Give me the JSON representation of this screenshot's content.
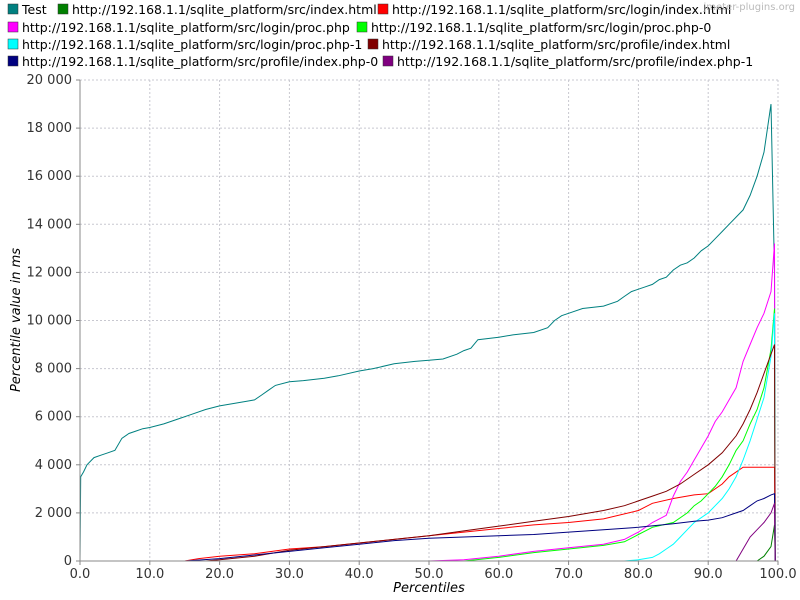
{
  "watermark": "jmeter-plugins.org",
  "chart_data": {
    "type": "line",
    "title": "",
    "xlabel": "Percentiles",
    "ylabel": "Percentile value in ms",
    "xlim": [
      0,
      100
    ],
    "ylim": [
      0,
      20000
    ],
    "x_ticks": [
      "0.0",
      "10.0",
      "20.0",
      "30.0",
      "40.0",
      "50.0",
      "60.0",
      "70.0",
      "80.0",
      "90.0",
      "100.0"
    ],
    "y_ticks": [
      "0",
      "2 000",
      "4 000",
      "6 000",
      "8 000",
      "10 000",
      "12 000",
      "14 000",
      "16 000",
      "18 000",
      "20 000"
    ],
    "grid": true,
    "legend_position": "top",
    "series": [
      {
        "name": "Test",
        "color": "#008080",
        "points": [
          [
            0,
            0
          ],
          [
            0.1,
            3500
          ],
          [
            0.5,
            3700
          ],
          [
            1,
            4000
          ],
          [
            2,
            4300
          ],
          [
            3,
            4400
          ],
          [
            4,
            4500
          ],
          [
            5,
            4600
          ],
          [
            6,
            5100
          ],
          [
            7,
            5300
          ],
          [
            8,
            5400
          ],
          [
            9,
            5500
          ],
          [
            10,
            5550
          ],
          [
            12,
            5700
          ],
          [
            14,
            5900
          ],
          [
            16,
            6100
          ],
          [
            18,
            6300
          ],
          [
            20,
            6450
          ],
          [
            22,
            6550
          ],
          [
            24,
            6650
          ],
          [
            25,
            6700
          ],
          [
            26,
            6900
          ],
          [
            27,
            7100
          ],
          [
            28,
            7300
          ],
          [
            30,
            7450
          ],
          [
            32,
            7500
          ],
          [
            35,
            7600
          ],
          [
            37,
            7700
          ],
          [
            40,
            7900
          ],
          [
            42,
            8000
          ],
          [
            45,
            8200
          ],
          [
            48,
            8300
          ],
          [
            50,
            8350
          ],
          [
            52,
            8400
          ],
          [
            54,
            8600
          ],
          [
            55,
            8750
          ],
          [
            56,
            8850
          ],
          [
            57,
            9200
          ],
          [
            60,
            9300
          ],
          [
            62,
            9400
          ],
          [
            65,
            9500
          ],
          [
            67,
            9700
          ],
          [
            68,
            10000
          ],
          [
            69,
            10200
          ],
          [
            70,
            10300
          ],
          [
            72,
            10500
          ],
          [
            75,
            10600
          ],
          [
            77,
            10800
          ],
          [
            78,
            11000
          ],
          [
            79,
            11200
          ],
          [
            80,
            11300
          ],
          [
            81,
            11400
          ],
          [
            82,
            11500
          ],
          [
            83,
            11700
          ],
          [
            84,
            11800
          ],
          [
            85,
            12100
          ],
          [
            86,
            12300
          ],
          [
            87,
            12400
          ],
          [
            88,
            12600
          ],
          [
            89,
            12900
          ],
          [
            90,
            13100
          ],
          [
            91,
            13400
          ],
          [
            92,
            13700
          ],
          [
            93,
            14000
          ],
          [
            94,
            14300
          ],
          [
            95,
            14600
          ],
          [
            96,
            15200
          ],
          [
            97,
            16000
          ],
          [
            98,
            17000
          ],
          [
            99,
            19000
          ],
          [
            99.5,
            12000
          ],
          [
            99.6,
            0
          ]
        ]
      },
      {
        "name": "http://192.168.1.1/sqlite_platform/src/index.html",
        "color": "#008000",
        "points": [
          [
            0,
            0
          ],
          [
            97,
            0
          ],
          [
            98,
            200
          ],
          [
            99,
            600
          ],
          [
            99.5,
            1500
          ],
          [
            99.6,
            0
          ]
        ]
      },
      {
        "name": "http://192.168.1.1/sqlite_platform/src/login/index.html",
        "color": "#ff0000",
        "points": [
          [
            0,
            0
          ],
          [
            15,
            0
          ],
          [
            17,
            100
          ],
          [
            20,
            200
          ],
          [
            25,
            300
          ],
          [
            30,
            500
          ],
          [
            35,
            600
          ],
          [
            40,
            750
          ],
          [
            45,
            900
          ],
          [
            50,
            1050
          ],
          [
            55,
            1200
          ],
          [
            60,
            1350
          ],
          [
            65,
            1500
          ],
          [
            70,
            1600
          ],
          [
            75,
            1750
          ],
          [
            80,
            2100
          ],
          [
            82,
            2400
          ],
          [
            85,
            2600
          ],
          [
            88,
            2750
          ],
          [
            90,
            2800
          ],
          [
            92,
            3200
          ],
          [
            93,
            3500
          ],
          [
            95,
            3900
          ],
          [
            99.5,
            3900
          ],
          [
            99.6,
            0
          ]
        ]
      },
      {
        "name": "http://192.168.1.1/sqlite_platform/src/login/proc.php",
        "color": "#ff00ff",
        "points": [
          [
            0,
            0
          ],
          [
            50,
            0
          ],
          [
            55,
            50
          ],
          [
            60,
            200
          ],
          [
            65,
            400
          ],
          [
            70,
            550
          ],
          [
            75,
            700
          ],
          [
            78,
            900
          ],
          [
            80,
            1200
          ],
          [
            82,
            1600
          ],
          [
            84,
            1900
          ],
          [
            85,
            2700
          ],
          [
            86,
            3300
          ],
          [
            87,
            3700
          ],
          [
            88,
            4200
          ],
          [
            89,
            4700
          ],
          [
            90,
            5200
          ],
          [
            91,
            5800
          ],
          [
            92,
            6200
          ],
          [
            93,
            6700
          ],
          [
            94,
            7200
          ],
          [
            95,
            8300
          ],
          [
            96,
            9000
          ],
          [
            97,
            9700
          ],
          [
            98,
            10300
          ],
          [
            99,
            11200
          ],
          [
            99.5,
            13200
          ],
          [
            99.6,
            0
          ]
        ]
      },
      {
        "name": "http://192.168.1.1/sqlite_platform/src/login/proc.php-0",
        "color": "#00ff00",
        "points": [
          [
            0,
            0
          ],
          [
            55,
            0
          ],
          [
            60,
            150
          ],
          [
            65,
            350
          ],
          [
            70,
            500
          ],
          [
            75,
            650
          ],
          [
            78,
            800
          ],
          [
            80,
            1100
          ],
          [
            82,
            1400
          ],
          [
            85,
            1600
          ],
          [
            87,
            2000
          ],
          [
            88,
            2300
          ],
          [
            89,
            2500
          ],
          [
            90,
            2800
          ],
          [
            91,
            3100
          ],
          [
            92,
            3500
          ],
          [
            93,
            4000
          ],
          [
            94,
            4600
          ],
          [
            95,
            5000
          ],
          [
            96,
            5700
          ],
          [
            97,
            6300
          ],
          [
            98,
            7200
          ],
          [
            99,
            8800
          ],
          [
            99.5,
            10500
          ],
          [
            99.6,
            0
          ]
        ]
      },
      {
        "name": "http://192.168.1.1/sqlite_platform/src/login/proc.php-1",
        "color": "#00ffff",
        "points": [
          [
            0,
            0
          ],
          [
            78,
            0
          ],
          [
            80,
            50
          ],
          [
            82,
            150
          ],
          [
            83,
            300
          ],
          [
            84,
            500
          ],
          [
            85,
            700
          ],
          [
            86,
            1000
          ],
          [
            87,
            1300
          ],
          [
            88,
            1600
          ],
          [
            89,
            1800
          ],
          [
            90,
            2000
          ],
          [
            91,
            2300
          ],
          [
            92,
            2600
          ],
          [
            93,
            3000
          ],
          [
            94,
            3500
          ],
          [
            95,
            4200
          ],
          [
            96,
            5000
          ],
          [
            97,
            5900
          ],
          [
            98,
            6800
          ],
          [
            99,
            8500
          ],
          [
            99.5,
            10300
          ],
          [
            99.6,
            0
          ]
        ]
      },
      {
        "name": "http://192.168.1.1/sqlite_platform/src/profile/index.html",
        "color": "#800000",
        "points": [
          [
            0,
            0
          ],
          [
            18,
            0
          ],
          [
            20,
            50
          ],
          [
            25,
            200
          ],
          [
            30,
            450
          ],
          [
            35,
            600
          ],
          [
            40,
            750
          ],
          [
            45,
            900
          ],
          [
            50,
            1050
          ],
          [
            55,
            1250
          ],
          [
            60,
            1450
          ],
          [
            65,
            1650
          ],
          [
            70,
            1850
          ],
          [
            75,
            2100
          ],
          [
            78,
            2300
          ],
          [
            80,
            2500
          ],
          [
            82,
            2700
          ],
          [
            84,
            2900
          ],
          [
            86,
            3200
          ],
          [
            88,
            3600
          ],
          [
            90,
            4000
          ],
          [
            92,
            4500
          ],
          [
            94,
            5200
          ],
          [
            95,
            5700
          ],
          [
            96,
            6300
          ],
          [
            97,
            7000
          ],
          [
            98,
            7800
          ],
          [
            99,
            8600
          ],
          [
            99.5,
            9000
          ],
          [
            99.6,
            0
          ]
        ]
      },
      {
        "name": "http://192.168.1.1/sqlite_platform/src/profile/index.php-0",
        "color": "#000080",
        "points": [
          [
            0,
            0
          ],
          [
            15,
            0
          ],
          [
            20,
            100
          ],
          [
            25,
            250
          ],
          [
            30,
            400
          ],
          [
            35,
            550
          ],
          [
            40,
            700
          ],
          [
            45,
            850
          ],
          [
            50,
            950
          ],
          [
            55,
            1000
          ],
          [
            60,
            1050
          ],
          [
            65,
            1100
          ],
          [
            70,
            1200
          ],
          [
            75,
            1300
          ],
          [
            80,
            1400
          ],
          [
            85,
            1550
          ],
          [
            88,
            1650
          ],
          [
            90,
            1700
          ],
          [
            92,
            1800
          ],
          [
            94,
            2000
          ],
          [
            95,
            2100
          ],
          [
            96,
            2300
          ],
          [
            97,
            2500
          ],
          [
            98,
            2600
          ],
          [
            99,
            2750
          ],
          [
            99.5,
            2800
          ],
          [
            99.6,
            0
          ]
        ]
      },
      {
        "name": "http://192.168.1.1/sqlite_platform/src/profile/index.php-1",
        "color": "#800080",
        "points": [
          [
            0,
            0
          ],
          [
            94,
            0
          ],
          [
            95,
            500
          ],
          [
            96,
            1000
          ],
          [
            97,
            1300
          ],
          [
            98,
            1600
          ],
          [
            99,
            2000
          ],
          [
            99.5,
            2400
          ],
          [
            99.6,
            0
          ]
        ]
      }
    ]
  }
}
